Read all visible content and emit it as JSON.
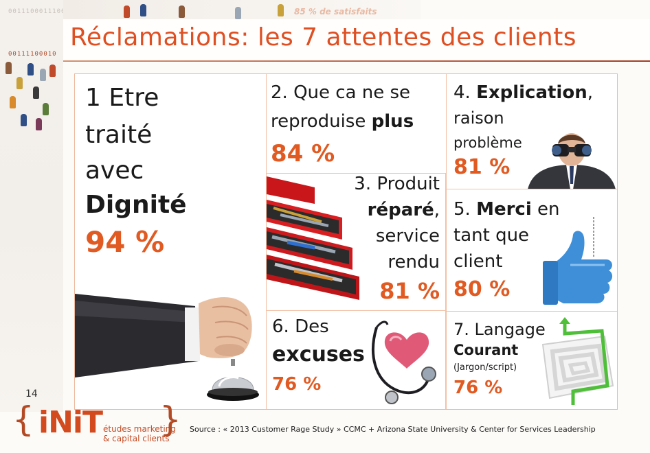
{
  "slide": {
    "title": "Réclamations: les 7 attentes des clients",
    "background_fragments": {
      "binary_top": "0011100011100",
      "binary_mid": "00111100010",
      "satisfaction_fragment": "85 % de satisfaits"
    },
    "page_number": "14"
  },
  "cells": {
    "c1": {
      "line1": "1 Etre",
      "line2": "traité",
      "line3": "avec",
      "line4": "Dignité",
      "percent": "94 %"
    },
    "c2": {
      "line1": "2. Que ca ne se",
      "line2_pre": "reproduise ",
      "line2_bold": "plus",
      "percent": "84 %"
    },
    "c3": {
      "line1": "3. Produit",
      "line2_bold": "réparé",
      "line2_post": ",",
      "line3": "service",
      "line4": "rendu",
      "percent": "81 %"
    },
    "c4": {
      "line1_pre": "4. ",
      "line1_bold": "Explication",
      "line1_post": ",",
      "line2": "raison",
      "line3": "problème",
      "percent": "81 %"
    },
    "c5": {
      "line1_pre": "5. ",
      "line1_bold": "Merci",
      "line1_post": " en",
      "line2": "tant que",
      "line3": "client",
      "percent": "80 %"
    },
    "c6": {
      "line1": "6. Des",
      "line2_bold": "excuses",
      "percent": "76 %"
    },
    "c7": {
      "line1": "7. Langage",
      "line2_bold": "Courant",
      "line3": "(Jargon/script)",
      "percent": "76 %"
    }
  },
  "footer": {
    "logo_text": "iNiT",
    "logo_tag_line1": "études marketing",
    "logo_tag_line2": "& capital clients",
    "source": "Source : « 2013 Customer Rage Study » CCMC + Arizona State University & Center for Services Leadership"
  },
  "colors": {
    "title": "#de4f22",
    "percent": "#e05a22",
    "frame_border": "#f0b79d",
    "logo": "#d24a1e"
  },
  "icons": [
    "fist-hand-icon",
    "service-bell-icon",
    "toolbox-icon",
    "binoculars-man-icon",
    "thumbs-up-icon",
    "stethoscope-heart-icon",
    "maze-icon"
  ]
}
